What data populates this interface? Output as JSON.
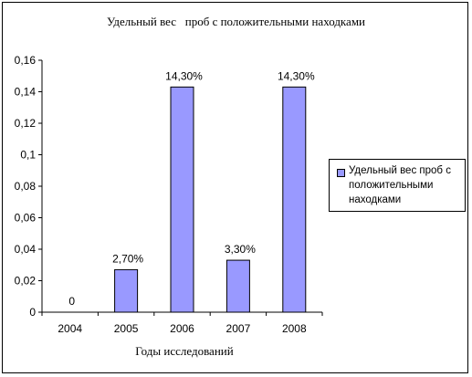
{
  "chart_data": {
    "type": "bar",
    "title": "Удельный вес   проб с положительными находками",
    "xlabel": "Годы исследований",
    "ylabel": "",
    "categories": [
      "2004",
      "2005",
      "2006",
      "2007",
      "2008"
    ],
    "series": [
      {
        "name": "Удельный вес   проб с положительными находками",
        "values": [
          0,
          0.027,
          0.143,
          0.033,
          0.143
        ],
        "data_labels": [
          "0",
          "2,70%",
          "14,30%",
          "3,30%",
          "14,30%"
        ],
        "color": "#9999ff"
      }
    ],
    "ylim": [
      0,
      0.16
    ],
    "yticks": [
      "0",
      "0,02",
      "0,04",
      "0,06",
      "0,08",
      "0,1",
      "0,12",
      "0,14",
      "0,16"
    ],
    "grid": false,
    "legend_position": "right"
  },
  "legend": {
    "label": "Удельный вес   проб с\nположительными\nнаходками"
  }
}
